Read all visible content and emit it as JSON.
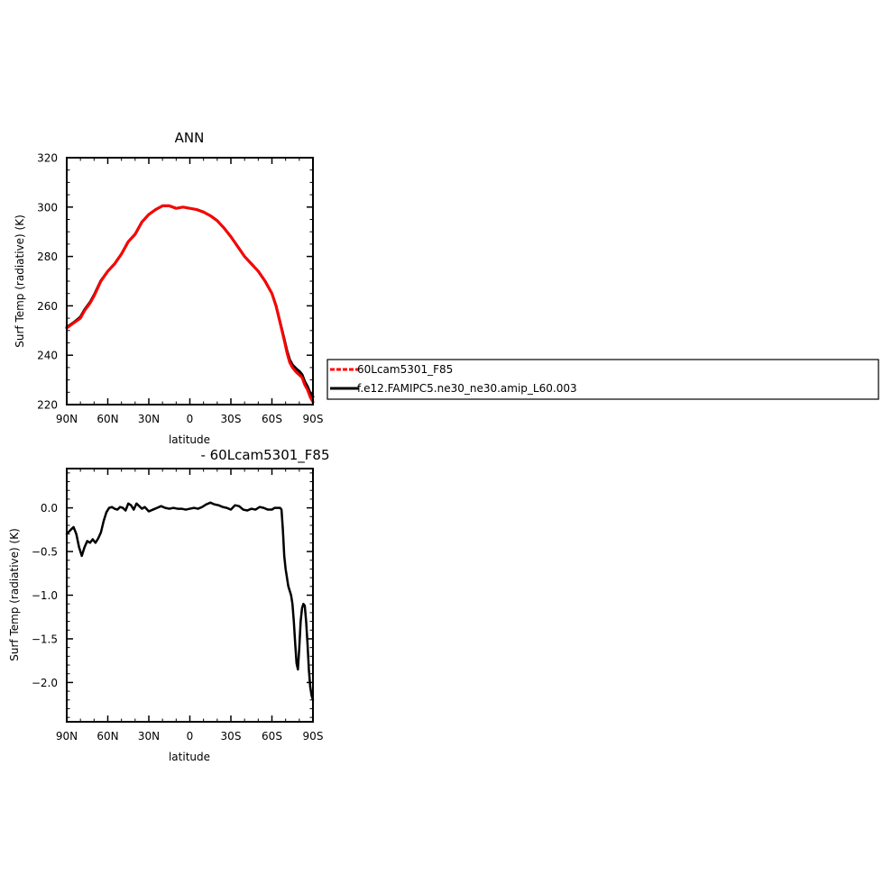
{
  "chart_data": [
    {
      "type": "line",
      "title": "ANN",
      "xlabel": "latitude",
      "ylabel": "Surf Temp (radiative) (K)",
      "xlim": [
        90,
        -90
      ],
      "ylim": [
        220,
        320
      ],
      "yticks": [
        220,
        240,
        260,
        280,
        300,
        320
      ],
      "xticks": [
        90,
        60,
        30,
        0,
        -30,
        -60,
        -90
      ],
      "xticklabels": [
        "90N",
        "60N",
        "30N",
        "0",
        "30S",
        "60S",
        "90S"
      ],
      "yticklabels": [
        "220",
        "240",
        "260",
        "280",
        "300",
        "320"
      ],
      "legend_position": "right",
      "series": [
        {
          "name": "60Lcam5301_F85",
          "color": "#ff0000",
          "x": [
            90,
            85,
            80,
            77,
            73,
            70,
            65,
            60,
            55,
            50,
            45,
            40,
            35,
            30,
            25,
            20,
            15,
            10,
            5,
            0,
            -5,
            -10,
            -15,
            -20,
            -25,
            -30,
            -35,
            -40,
            -45,
            -50,
            -55,
            -60,
            -63,
            -66,
            -69,
            -71,
            -73,
            -75,
            -78,
            -80,
            -82,
            -84,
            -86,
            -88,
            -90
          ],
          "y": [
            251,
            253,
            255,
            258,
            261,
            264,
            270,
            274,
            277,
            281,
            286,
            289,
            294,
            297,
            299,
            300.5,
            300.5,
            299.5,
            300,
            299.5,
            299,
            298,
            296.5,
            294.5,
            291.5,
            288,
            284,
            280,
            277,
            274,
            270,
            265,
            260,
            253,
            246,
            241,
            237,
            235,
            233,
            232,
            231,
            228,
            226,
            223,
            221
          ]
        },
        {
          "name": "f.e12.FAMIPC5.ne30_ne30.amip_L60.003",
          "color": "#000000",
          "x": [
            90,
            85,
            80,
            77,
            73,
            70,
            65,
            60,
            55,
            50,
            45,
            40,
            35,
            30,
            25,
            20,
            15,
            10,
            5,
            0,
            -5,
            -10,
            -15,
            -20,
            -25,
            -30,
            -35,
            -40,
            -45,
            -50,
            -55,
            -60,
            -63,
            -66,
            -69,
            -71,
            -73,
            -75,
            -78,
            -80,
            -82,
            -84,
            -86,
            -88,
            -90
          ],
          "y": [
            251.3,
            253.2,
            255.5,
            258.4,
            261.4,
            264.4,
            270.2,
            274,
            277,
            281,
            286,
            289,
            294,
            297,
            299,
            300.5,
            300.5,
            299.5,
            300,
            299.5,
            299,
            298,
            296.5,
            294.5,
            291.5,
            288,
            284,
            280,
            277,
            274,
            270,
            265,
            260,
            253.3,
            246.5,
            241.8,
            238.1,
            236.1,
            234.4,
            233.5,
            232.2,
            229.3,
            227.3,
            224.6,
            223.2
          ]
        }
      ]
    },
    {
      "type": "line",
      "title": "- 60Lcam5301_F85",
      "xlabel": "latitude",
      "ylabel": "Surf Temp (radiative) (K)",
      "xlim": [
        90,
        -90
      ],
      "ylim": [
        -2.45,
        0.45
      ],
      "yticks": [
        -2.0,
        -1.5,
        -1.0,
        -0.5,
        0.0
      ],
      "xticks": [
        90,
        60,
        30,
        0,
        -30,
        -60,
        -90
      ],
      "xticklabels": [
        "90N",
        "60N",
        "30N",
        "0",
        "30S",
        "60S",
        "90S"
      ],
      "yticklabels": [
        "−2.0",
        "−1.5",
        "−1.0",
        "−0.5",
        "0.0"
      ],
      "series": [
        {
          "color": "#000000",
          "x": [
            90,
            87,
            85,
            83,
            81,
            79,
            77,
            75,
            73,
            71,
            69,
            67,
            65,
            63,
            61,
            59,
            57,
            55,
            53,
            51,
            49,
            47,
            45,
            43,
            41,
            39,
            37,
            35,
            33,
            30,
            27,
            24,
            21,
            18,
            15,
            12,
            9,
            6,
            3,
            0,
            -3,
            -6,
            -9,
            -12,
            -15,
            -18,
            -21,
            -24,
            -27,
            -30,
            -33,
            -36,
            -39,
            -42,
            -45,
            -48,
            -51,
            -54,
            -57,
            -60,
            -62,
            -64,
            -66,
            -67,
            -68,
            -69,
            -70,
            -71,
            -72,
            -73,
            -74,
            -75,
            -76,
            -77,
            -78,
            -79,
            -80,
            -81,
            -82,
            -83,
            -84,
            -85,
            -86,
            -87,
            -88,
            -89,
            -90
          ],
          "y": [
            -0.3,
            -0.25,
            -0.22,
            -0.3,
            -0.45,
            -0.55,
            -0.45,
            -0.38,
            -0.4,
            -0.36,
            -0.4,
            -0.35,
            -0.28,
            -0.15,
            -0.05,
            0.0,
            0.01,
            -0.01,
            -0.02,
            0.01,
            0.0,
            -0.03,
            0.05,
            0.03,
            -0.02,
            0.05,
            0.02,
            -0.01,
            0.01,
            -0.04,
            -0.02,
            0.0,
            0.02,
            0.0,
            -0.01,
            0.0,
            -0.01,
            -0.01,
            -0.02,
            -0.01,
            0.0,
            -0.01,
            0.01,
            0.04,
            0.06,
            0.04,
            0.03,
            0.01,
            0.0,
            -0.02,
            0.03,
            0.02,
            -0.02,
            -0.03,
            -0.01,
            -0.02,
            0.01,
            0.0,
            -0.02,
            -0.02,
            0.0,
            0.0,
            0.0,
            -0.02,
            -0.25,
            -0.55,
            -0.7,
            -0.8,
            -0.9,
            -0.95,
            -1.0,
            -1.1,
            -1.3,
            -1.55,
            -1.78,
            -1.85,
            -1.6,
            -1.3,
            -1.15,
            -1.1,
            -1.12,
            -1.3,
            -1.55,
            -1.85,
            -2.05,
            -2.15,
            -2.2
          ]
        }
      ]
    }
  ]
}
